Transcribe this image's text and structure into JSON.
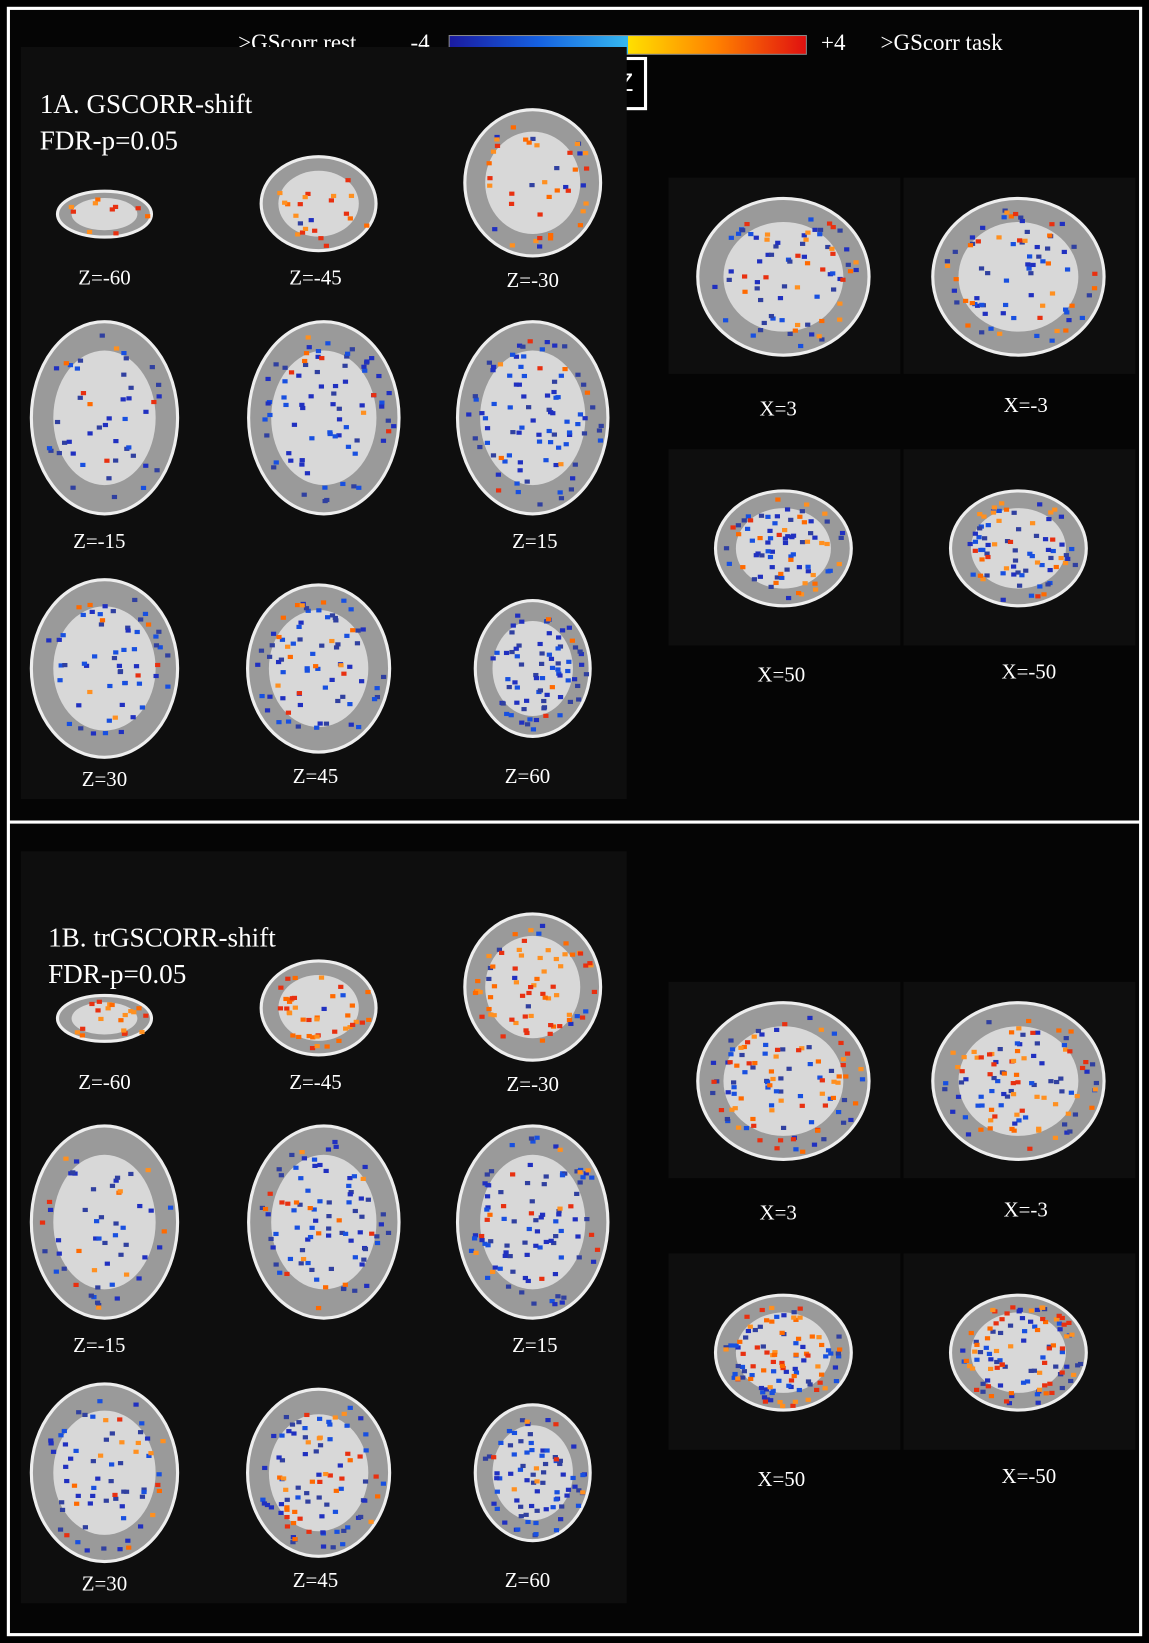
{
  "colorbar": {
    "left_label": ">GScorr rest",
    "min_label": "-4",
    "max_label": "+4",
    "right_label": ">GScorr task",
    "unit": "Z"
  },
  "panels": [
    {
      "title": "1A. GSCORR-shift",
      "threshold": "FDR-p=0.05",
      "axial_labels": [
        "Z=-60",
        "Z=-45",
        "Z=-30",
        "Z=-15",
        "Z=15",
        "Z=30",
        "Z=45",
        "Z=60"
      ],
      "sagittal_labels": [
        "X=3",
        "X=-3",
        "X=50",
        "X=-50"
      ]
    },
    {
      "title": "1B. trGSCORR-shift",
      "threshold": "FDR-p=0.05",
      "axial_labels": [
        "Z=-60",
        "Z=-45",
        "Z=-30",
        "Z=-15",
        "Z=15",
        "Z=30",
        "Z=45",
        "Z=60"
      ],
      "sagittal_labels": [
        "X=3",
        "X=-3",
        "X=50",
        "X=-50"
      ]
    }
  ]
}
